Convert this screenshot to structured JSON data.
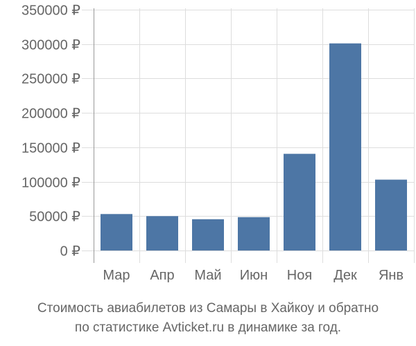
{
  "chart_data": {
    "type": "bar",
    "categories": [
      "Мар",
      "Апр",
      "Май",
      "Июн",
      "Ноя",
      "Дек",
      "Янв"
    ],
    "values": [
      53000,
      50000,
      45500,
      48500,
      140500,
      301000,
      103000
    ],
    "ylim": [
      0,
      350000
    ],
    "yticks": [
      0,
      50000,
      100000,
      150000,
      200000,
      250000,
      300000,
      350000
    ],
    "ytick_labels": [
      "0 ₽",
      "50000 ₽",
      "100000 ₽",
      "150000 ₽",
      "200000 ₽",
      "250000 ₽",
      "300000 ₽",
      "350000 ₽"
    ],
    "bar_color": "#4d76a5",
    "grid_color": "#dddddd",
    "axis_color": "#999999",
    "grid": true
  },
  "caption": {
    "line1": "Стоимость авиабилетов из Самары в Хайкоу и обратно",
    "line2": "по статистике Avticket.ru в динамике за год."
  }
}
